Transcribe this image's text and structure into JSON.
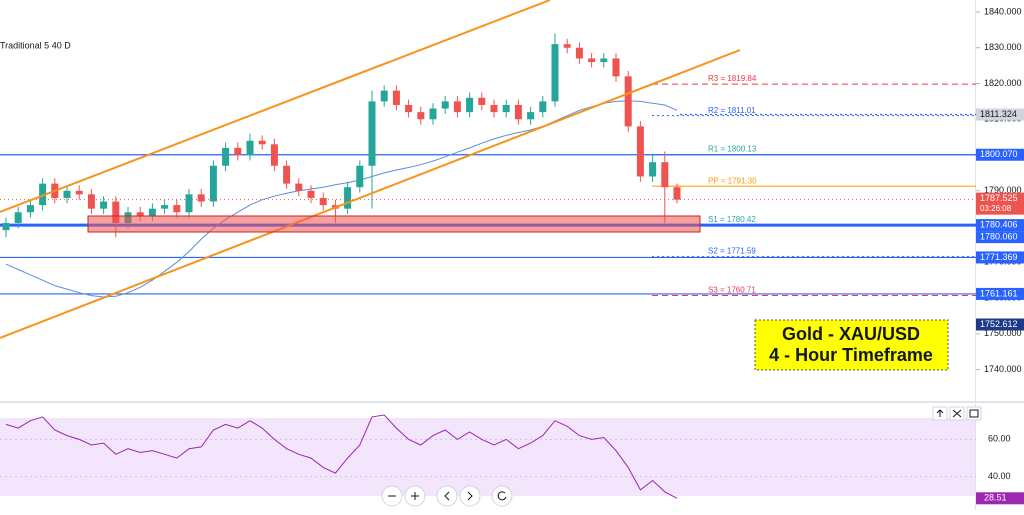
{
  "chart_data": {
    "type": "candlestick",
    "indicator_label": "Traditional 5 40 D",
    "ylim": [
      1731.5,
      1843.35
    ],
    "yticks": [
      {
        "value": 1740,
        "label": "1740.000"
      },
      {
        "value": 1750,
        "label": "1750.000"
      },
      {
        "value": 1760,
        "label": "1760.000"
      },
      {
        "value": 1770,
        "label": "1770.000"
      },
      {
        "value": 1780,
        "label": "1780.000"
      },
      {
        "value": 1790,
        "label": "1790.000"
      },
      {
        "value": 1800,
        "label": "1800.000"
      },
      {
        "value": 1810,
        "label": "1810.000"
      },
      {
        "value": 1820,
        "label": "1820.000"
      },
      {
        "value": 1830,
        "label": "1830.000"
      },
      {
        "value": 1840,
        "label": "1840.000"
      }
    ],
    "open": [
      1779,
      1781,
      1784,
      1786,
      1792,
      1788,
      1790,
      1789,
      1785,
      1787,
      1781,
      1784,
      1783,
      1785,
      1786,
      1784,
      1789,
      1787,
      1797,
      1802,
      1800,
      1804,
      1803,
      1797,
      1792,
      1790,
      1788,
      1786,
      1785,
      1791,
      1797,
      1815,
      1818,
      1814,
      1812,
      1810,
      1813,
      1815,
      1812,
      1816,
      1814,
      1812,
      1814,
      1810,
      1812,
      1815,
      1831,
      1830,
      1827,
      1826,
      1827,
      1822,
      1808,
      1794,
      1798,
      1791
    ],
    "high": [
      1782.5,
      1785.5,
      1787.5,
      1793.5,
      1793.5,
      1791.5,
      1791.5,
      1790.5,
      1788.5,
      1788.5,
      1785.5,
      1785.5,
      1786.5,
      1787.5,
      1787.5,
      1790.5,
      1790.5,
      1798.5,
      1803.5,
      1803.5,
      1806,
      1805.5,
      1804.5,
      1798.5,
      1793.5,
      1791.5,
      1789.5,
      1787.5,
      1792.5,
      1798.5,
      1818,
      1819.5,
      1819.5,
      1815.5,
      1813.5,
      1814.5,
      1816.5,
      1816.5,
      1817.5,
      1817.5,
      1815.5,
      1815.5,
      1815.5,
      1813.5,
      1816.5,
      1834,
      1832.5,
      1831.5,
      1828.5,
      1828.5,
      1828.5,
      1823.5,
      1809.5,
      1800,
      1801,
      1792
    ],
    "low": [
      1777,
      1779.5,
      1782.5,
      1784.5,
      1786.5,
      1786.5,
      1787.5,
      1783.5,
      1783.5,
      1777,
      1779.5,
      1781.5,
      1781.5,
      1783.5,
      1782.5,
      1782.5,
      1785.5,
      1785.5,
      1795.5,
      1798.5,
      1798.5,
      1801.5,
      1795.5,
      1790.5,
      1788.5,
      1786.5,
      1784.5,
      1781,
      1783.5,
      1789.5,
      1785,
      1813.5,
      1812.5,
      1810.5,
      1808.5,
      1808.5,
      1811.5,
      1810.5,
      1810.5,
      1812.5,
      1810.5,
      1810.5,
      1808.5,
      1808.5,
      1810.5,
      1813.5,
      1828.5,
      1825.5,
      1824.5,
      1824.5,
      1820.5,
      1806.5,
      1792.5,
      1792.5,
      1781,
      1786.5
    ],
    "close": [
      1781,
      1784,
      1786,
      1792,
      1788,
      1790,
      1789,
      1785,
      1787,
      1781,
      1784,
      1783,
      1785,
      1786,
      1784,
      1789,
      1787,
      1797,
      1802,
      1800,
      1804,
      1803,
      1797,
      1792,
      1790,
      1788,
      1786,
      1785,
      1791,
      1797,
      1815,
      1818,
      1814,
      1812,
      1810,
      1813,
      1815,
      1812,
      1816,
      1814,
      1812,
      1814,
      1810,
      1812,
      1815,
      1831,
      1830,
      1827,
      1826,
      1827,
      1822,
      1808,
      1794,
      1798,
      1791,
      1787.525
    ],
    "up_color": "#26a69a",
    "down_color": "#ef5350",
    "ma": {
      "color": "#5b8fd9",
      "values": [
        1769.5,
        1768,
        1766.5,
        1765,
        1763.5,
        1762.5,
        1761.5,
        1760.7,
        1760.3,
        1760.5,
        1761.5,
        1763,
        1765,
        1767.5,
        1770,
        1773,
        1776.5,
        1779.5,
        1782,
        1784,
        1786,
        1787.5,
        1788.5,
        1789.3,
        1790,
        1790.5,
        1791,
        1791.7,
        1792.3,
        1793,
        1794,
        1795,
        1795.8,
        1796.5,
        1797.3,
        1798.3,
        1799.5,
        1800.8,
        1802,
        1803.3,
        1804.5,
        1805.5,
        1806.3,
        1807,
        1808,
        1809.5,
        1811,
        1812.5,
        1813.5,
        1814.5,
        1815,
        1815.2,
        1815,
        1814.5,
        1814,
        1812.5
      ]
    },
    "price_tags": [
      {
        "value": 1811.324,
        "color": "#d1d4dc",
        "text_color": "#131722",
        "line": "dotted"
      },
      {
        "value": 1800.07,
        "label": "1800.070",
        "color": "#2962ff",
        "text_color": "#ffffff",
        "line": "solid"
      },
      {
        "value": 1780.406,
        "color": "#2962ff",
        "text_color": "#ffffff",
        "line": "thick"
      },
      {
        "value": 1780.06,
        "label": "1780.060",
        "color": "#2962ff",
        "text_color": "#ffffff"
      },
      {
        "value": 1771.369,
        "color": "#2962ff",
        "text_color": "#ffffff",
        "line": "solid"
      },
      {
        "value": 1761.161,
        "color": "#2962ff",
        "text_color": "#ffffff",
        "line": "solid"
      },
      {
        "value": 1752.612,
        "color": "#1e3a8a",
        "text_color": "#ffffff"
      }
    ],
    "countdown": "03:26:08",
    "pivots": [
      {
        "value": 1819.84,
        "label": "R3 = 1819.84",
        "color": "#f23645",
        "style": "dashed"
      },
      {
        "value": 1811.01,
        "label": "R2 = 1811.01",
        "color": "#2962ff",
        "style": "dotted"
      },
      {
        "value": 1800.13,
        "label": "R1 = 1800.13",
        "color": "#26a69a",
        "style": "solid"
      },
      {
        "value": 1791.3,
        "label": "PP = 1791.30",
        "color": "#ff9800",
        "style": "solid"
      },
      {
        "value": 1780.42,
        "label": "S1 = 1780.42",
        "color": "#26a69a",
        "style": "solid"
      },
      {
        "value": 1771.59,
        "label": "S2 = 1771.59",
        "color": "#2962ff",
        "style": "dotted"
      },
      {
        "value": 1760.71,
        "label": "S3 = 1760.71",
        "color": "#f23645",
        "style": "dashed"
      }
    ],
    "annotation": [
      "Gold - XAU/USD",
      "4 - Hour Timeframe"
    ],
    "rsi": {
      "color": "#9c27b0",
      "ylim": [
        27.6,
        78.9
      ],
      "yticks": [
        {
          "value": 40,
          "label": "40.00"
        },
        {
          "value": 60,
          "label": "60.00"
        }
      ],
      "values": [
        68,
        66,
        70,
        72,
        65,
        62,
        60,
        57,
        58,
        52,
        55,
        53,
        54,
        52,
        50,
        55,
        56,
        65,
        68,
        66,
        70,
        66,
        60,
        55,
        52,
        50,
        45,
        42,
        50,
        57,
        72,
        73,
        66,
        60,
        57,
        62,
        65,
        60,
        64,
        60,
        57,
        60,
        55,
        58,
        62,
        70,
        67,
        62,
        60,
        61,
        54,
        45,
        33,
        38,
        32,
        28.51
      ]
    }
  }
}
